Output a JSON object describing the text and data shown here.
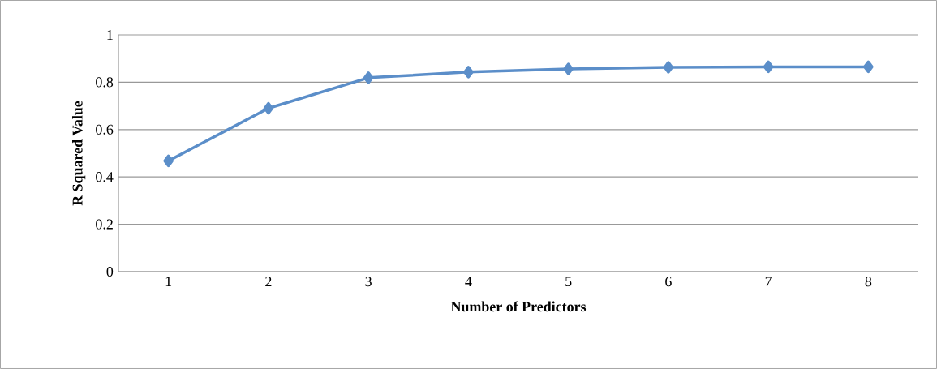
{
  "chart_data": {
    "type": "line",
    "xlabel": "Number of Predictors",
    "ylabel": "R Squared Value",
    "categories": [
      "1",
      "2",
      "3",
      "4",
      "5",
      "6",
      "7",
      "8"
    ],
    "series": [
      {
        "color": "#5b8ec9",
        "values": [
          0.468,
          0.69,
          0.819,
          0.843,
          0.856,
          0.863,
          0.865,
          0.865
        ]
      }
    ],
    "ylim": [
      0,
      1
    ],
    "yticks": [
      0,
      0.2,
      0.4,
      0.6,
      0.8,
      1
    ],
    "grid": "y",
    "marker": "diamond",
    "line_style": "solid"
  }
}
